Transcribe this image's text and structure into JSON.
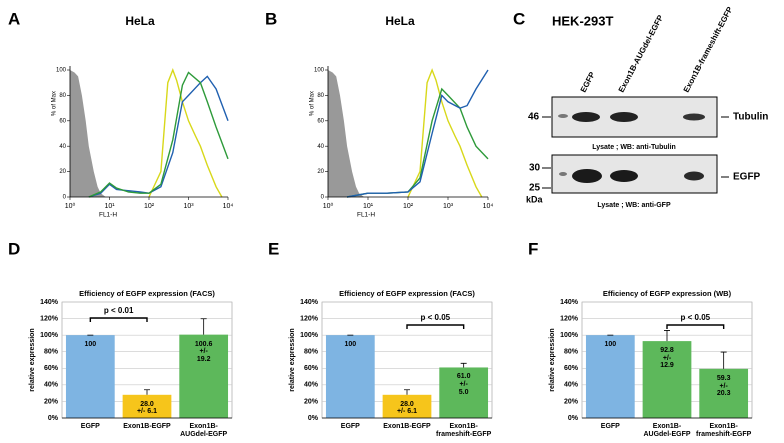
{
  "chart_data": [
    {
      "type": "line",
      "panel": "A",
      "title": "HeLa",
      "xlabel": "FL1-H",
      "ylabel": "% of Max",
      "log_x": true,
      "xlim": [
        1,
        10000
      ],
      "ylim": [
        0,
        100
      ],
      "xticks": [
        {
          "value": 1,
          "label": "10⁰"
        },
        {
          "value": 10,
          "label": "10¹"
        },
        {
          "value": 100,
          "label": "10²"
        },
        {
          "value": 1000,
          "label": "10³"
        },
        {
          "value": 10000,
          "label": "10⁴"
        }
      ],
      "yticks": [
        0,
        20,
        40,
        60,
        80,
        100
      ],
      "series": [
        {
          "color": "#999999",
          "filled": true,
          "x": [
            1,
            1.3,
            1.6,
            2,
            2.5,
            3,
            4,
            5,
            6,
            8
          ],
          "values": [
            100,
            98,
            95,
            80,
            60,
            40,
            20,
            8,
            3,
            0
          ]
        },
        {
          "color": "#d8d81a",
          "x": [
            100,
            200,
            300,
            400,
            500,
            700,
            1000,
            1500,
            2000,
            3000,
            5000,
            7000
          ],
          "values": [
            0,
            20,
            90,
            100,
            92,
            75,
            60,
            48,
            40,
            25,
            8,
            0
          ]
        },
        {
          "color": "#2060b0",
          "x": [
            3,
            6,
            10,
            15,
            30,
            60,
            100,
            200,
            400,
            700,
            1000,
            2000,
            3000,
            5000,
            10000
          ],
          "values": [
            0,
            3,
            10,
            6,
            5,
            4,
            3,
            8,
            35,
            75,
            80,
            90,
            95,
            85,
            60
          ]
        },
        {
          "color": "#2e9a3a",
          "x": [
            3,
            6,
            10,
            15,
            30,
            60,
            100,
            200,
            400,
            700,
            1000,
            2000,
            3000,
            5000,
            10000
          ],
          "values": [
            0,
            4,
            11,
            7,
            4,
            3,
            3,
            10,
            45,
            88,
            98,
            90,
            75,
            55,
            30
          ]
        }
      ]
    },
    {
      "type": "line",
      "panel": "B",
      "title": "HeLa",
      "xlabel": "FL1-H",
      "ylabel": "% of Max",
      "log_x": true,
      "xlim": [
        1,
        10000
      ],
      "ylim": [
        0,
        100
      ],
      "xticks": [
        {
          "value": 1,
          "label": "10⁰"
        },
        {
          "value": 10,
          "label": "10¹"
        },
        {
          "value": 100,
          "label": "10²"
        },
        {
          "value": 1000,
          "label": "10³"
        },
        {
          "value": 10000,
          "label": "10⁴"
        }
      ],
      "yticks": [
        0,
        20,
        40,
        60,
        80,
        100
      ],
      "series": [
        {
          "color": "#999999",
          "filled": true,
          "x": [
            1,
            1.3,
            1.6,
            2,
            2.5,
            3,
            4,
            5,
            6,
            8
          ],
          "values": [
            100,
            98,
            95,
            80,
            60,
            40,
            20,
            8,
            3,
            0
          ]
        },
        {
          "color": "#d8d81a",
          "x": [
            100,
            200,
            300,
            400,
            500,
            700,
            1000,
            1500,
            2000,
            3000,
            5000,
            7000
          ],
          "values": [
            0,
            20,
            90,
            100,
            92,
            75,
            60,
            48,
            40,
            25,
            8,
            0
          ]
        },
        {
          "color": "#2e9a3a",
          "x": [
            3,
            10,
            30,
            100,
            200,
            400,
            700,
            1000,
            2000,
            3000,
            5000,
            10000
          ],
          "values": [
            0,
            3,
            3,
            4,
            15,
            60,
            85,
            80,
            70,
            55,
            40,
            30
          ]
        },
        {
          "color": "#2060b0",
          "x": [
            3,
            10,
            30,
            100,
            200,
            400,
            700,
            1000,
            2000,
            3000,
            5000,
            10000
          ],
          "values": [
            0,
            3,
            3,
            4,
            12,
            50,
            80,
            75,
            70,
            72,
            85,
            100
          ]
        }
      ]
    },
    {
      "type": "bar",
      "panel": "D",
      "title": "Efficiency of EGFP expression (FACS)",
      "ylabel": "relative expression",
      "categories": [
        "EGFP",
        "Exon1B-EGFP",
        "Exon1B-\nAUGdel-EGFP"
      ],
      "values": [
        100,
        28.0,
        100.6
      ],
      "errors": [
        0,
        6.1,
        19.2
      ],
      "value_labels": [
        "100",
        "28.0\n+/- 6.1",
        "100.6\n+/-\n19.2"
      ],
      "colors": [
        "#7eb4e2",
        "#f6c51b",
        "#5db85b"
      ],
      "ylim": [
        0,
        140
      ],
      "yticks": [
        {
          "value": 0,
          "label": "0%"
        },
        {
          "value": 20,
          "label": "20%"
        },
        {
          "value": 40,
          "label": "40%"
        },
        {
          "value": 60,
          "label": "60%"
        },
        {
          "value": 80,
          "label": "80%"
        },
        {
          "value": 100,
          "label": "100%"
        },
        {
          "value": 120,
          "label": "120%"
        },
        {
          "value": 140,
          "label": "140%"
        }
      ],
      "grid": true,
      "annotation": "p < 0.01"
    },
    {
      "type": "bar",
      "panel": "E",
      "title": "Efficiency of EGFP expression (FACS)",
      "ylabel": "relative expression",
      "categories": [
        "EGFP",
        "Exon1B-EGFP",
        "Exon1B-\nframeshift-EGFP"
      ],
      "values": [
        100,
        28.0,
        61.0
      ],
      "errors": [
        0,
        6.1,
        5.0
      ],
      "value_labels": [
        "100",
        "28.0\n+/- 6.1",
        "61.0\n+/-\n5.0"
      ],
      "colors": [
        "#7eb4e2",
        "#f6c51b",
        "#5db85b"
      ],
      "ylim": [
        0,
        140
      ],
      "yticks": [
        {
          "value": 0,
          "label": "0%"
        },
        {
          "value": 20,
          "label": "20%"
        },
        {
          "value": 40,
          "label": "40%"
        },
        {
          "value": 60,
          "label": "60%"
        },
        {
          "value": 80,
          "label": "80%"
        },
        {
          "value": 100,
          "label": "100%"
        },
        {
          "value": 120,
          "label": "120%"
        },
        {
          "value": 140,
          "label": "140%"
        }
      ],
      "grid": true,
      "annotation": "p < 0.05"
    },
    {
      "type": "bar",
      "panel": "F",
      "title": "Efficiency of EGFP expression (WB)",
      "ylabel": "relative expression",
      "categories": [
        "EGFP",
        "Exon1B-\nAUGdel-EGFP",
        "Exon1B-\nframeshift-EGFP"
      ],
      "values": [
        100,
        92.8,
        59.3
      ],
      "errors": [
        0,
        12.9,
        20.3
      ],
      "value_labels": [
        "100",
        "92.8\n+/-\n12.9",
        "59.3\n+/-\n20.3"
      ],
      "colors": [
        "#7eb4e2",
        "#5db85b",
        "#5db85b"
      ],
      "ylim": [
        0,
        140
      ],
      "yticks": [
        {
          "value": 0,
          "label": "0%"
        },
        {
          "value": 20,
          "label": "20%"
        },
        {
          "value": 40,
          "label": "40%"
        },
        {
          "value": 60,
          "label": "60%"
        },
        {
          "value": 80,
          "label": "80%"
        },
        {
          "value": 100,
          "label": "100%"
        },
        {
          "value": 120,
          "label": "120%"
        },
        {
          "value": 140,
          "label": "140%"
        }
      ],
      "grid": true,
      "annotation": "p < 0.05"
    }
  ],
  "blot": {
    "panel": "C",
    "title": "HEK-293T",
    "lanes": [
      "EGFP",
      "Exon1B-AUGdel-EGFP",
      "Exon1B-frameshift-EGFP"
    ],
    "markers": [
      46,
      30,
      25
    ],
    "marker_unit": "kDa",
    "panels": [
      {
        "label": "Tubulin",
        "caption": "Lysate ; WB: anti-Tubulin"
      },
      {
        "label": "EGFP",
        "caption": "Lysate ; WB: anti-GFP"
      }
    ]
  }
}
